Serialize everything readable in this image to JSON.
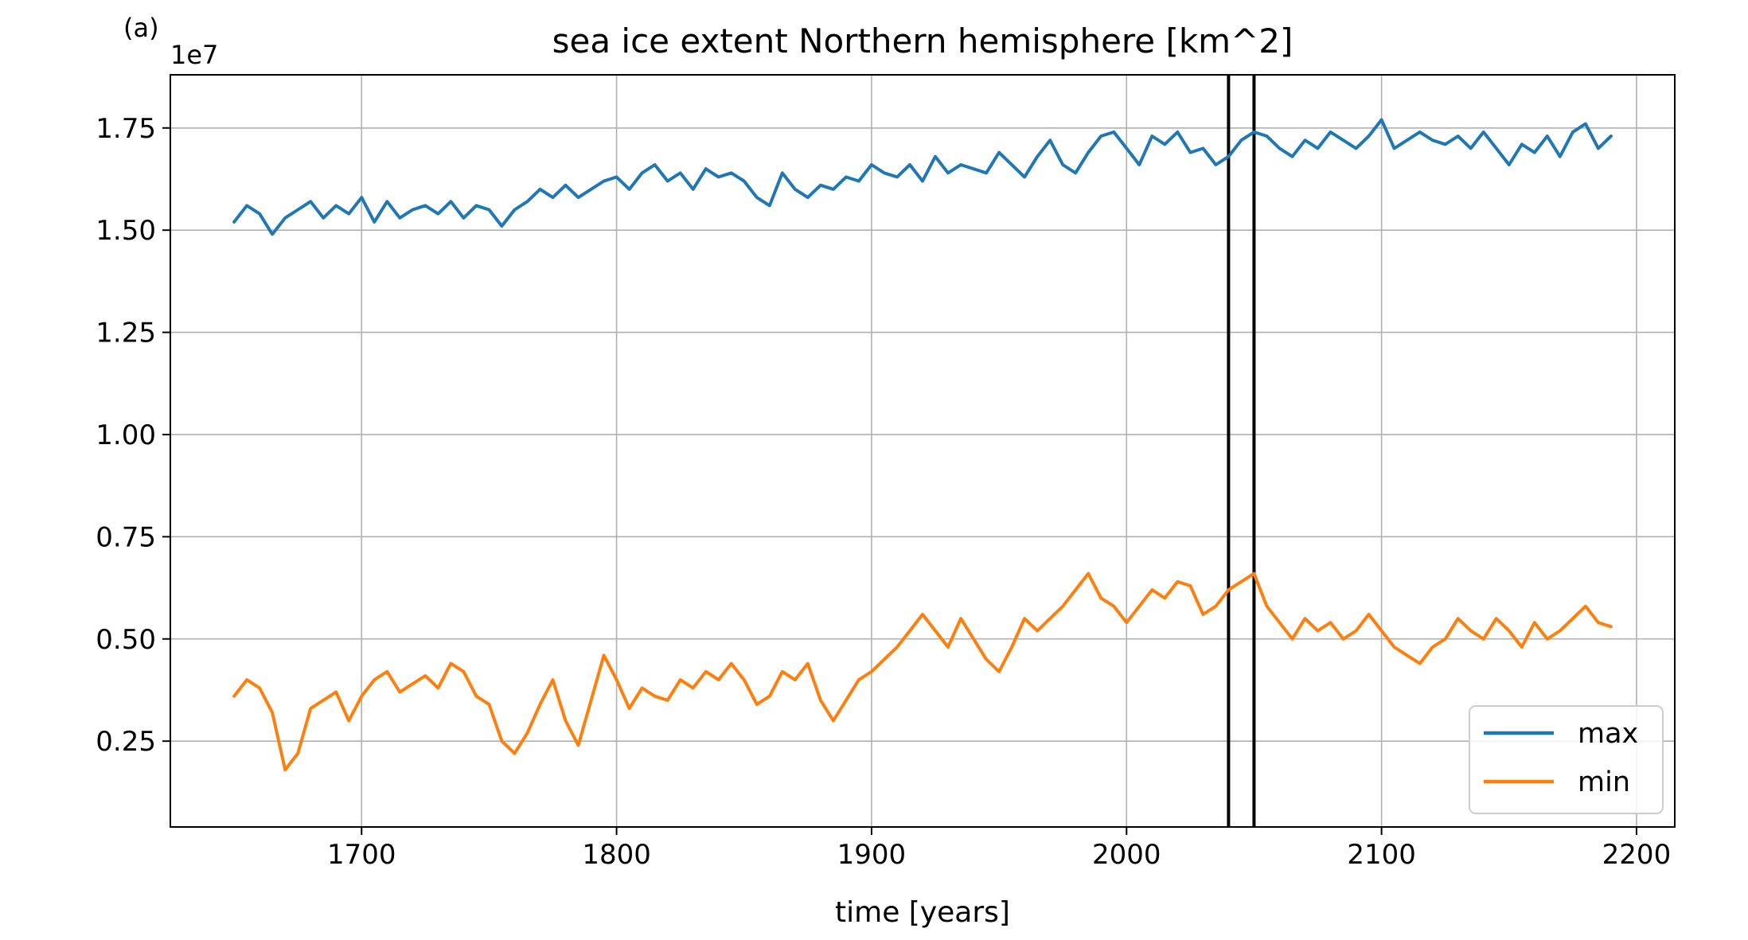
{
  "panel_label": "(a)",
  "chart_data": {
    "type": "line",
    "title": "sea ice extent Northern hemisphere [km^2]",
    "xlabel": "time [years]",
    "ylabel": "",
    "y_offset_label": "1e7",
    "y_scale": 10000000,
    "xlim": [
      1625,
      2215
    ],
    "ylim": [
      0.04,
      1.88
    ],
    "x_ticks": [
      1700,
      1800,
      1900,
      2000,
      2100,
      2200
    ],
    "y_ticks": [
      0.25,
      0.5,
      0.75,
      1.0,
      1.25,
      1.5,
      1.75
    ],
    "y_tick_labels": [
      "0.25",
      "0.50",
      "0.75",
      "1.00",
      "1.25",
      "1.50",
      "1.75"
    ],
    "grid": true,
    "legend_position": "lower-right",
    "vlines": [
      2040,
      2050
    ],
    "colors": {
      "max": "#1f77b4",
      "min": "#ff7f0e",
      "vline": "#000000",
      "grid": "#b0b0b0"
    },
    "series": [
      {
        "name": "max",
        "x": [
          1650,
          1655,
          1660,
          1665,
          1670,
          1675,
          1680,
          1685,
          1690,
          1695,
          1700,
          1705,
          1710,
          1715,
          1720,
          1725,
          1730,
          1735,
          1740,
          1745,
          1750,
          1755,
          1760,
          1765,
          1770,
          1775,
          1780,
          1785,
          1790,
          1795,
          1800,
          1805,
          1810,
          1815,
          1820,
          1825,
          1830,
          1835,
          1840,
          1845,
          1850,
          1855,
          1860,
          1865,
          1870,
          1875,
          1880,
          1885,
          1890,
          1895,
          1900,
          1905,
          1910,
          1915,
          1920,
          1925,
          1930,
          1935,
          1940,
          1945,
          1950,
          1955,
          1960,
          1965,
          1970,
          1975,
          1980,
          1985,
          1990,
          1995,
          2000,
          2005,
          2010,
          2015,
          2020,
          2025,
          2030,
          2035,
          2040,
          2045,
          2050,
          2055,
          2060,
          2065,
          2070,
          2075,
          2080,
          2085,
          2090,
          2095,
          2100,
          2105,
          2110,
          2115,
          2120,
          2125,
          2130,
          2135,
          2140,
          2145,
          2150,
          2155,
          2160,
          2165,
          2170,
          2175,
          2180,
          2185,
          2190
        ],
        "y": [
          1.52,
          1.56,
          1.54,
          1.49,
          1.53,
          1.55,
          1.57,
          1.53,
          1.56,
          1.54,
          1.58,
          1.52,
          1.57,
          1.53,
          1.55,
          1.56,
          1.54,
          1.57,
          1.53,
          1.56,
          1.55,
          1.51,
          1.55,
          1.57,
          1.6,
          1.58,
          1.61,
          1.58,
          1.6,
          1.62,
          1.63,
          1.6,
          1.64,
          1.66,
          1.62,
          1.64,
          1.6,
          1.65,
          1.63,
          1.64,
          1.62,
          1.58,
          1.56,
          1.64,
          1.6,
          1.58,
          1.61,
          1.6,
          1.63,
          1.62,
          1.66,
          1.64,
          1.63,
          1.66,
          1.62,
          1.68,
          1.64,
          1.66,
          1.65,
          1.64,
          1.69,
          1.66,
          1.63,
          1.68,
          1.72,
          1.66,
          1.64,
          1.69,
          1.73,
          1.74,
          1.7,
          1.66,
          1.73,
          1.71,
          1.74,
          1.69,
          1.7,
          1.66,
          1.68,
          1.72,
          1.74,
          1.73,
          1.7,
          1.68,
          1.72,
          1.7,
          1.74,
          1.72,
          1.7,
          1.73,
          1.77,
          1.7,
          1.72,
          1.74,
          1.72,
          1.71,
          1.73,
          1.7,
          1.74,
          1.7,
          1.66,
          1.71,
          1.69,
          1.73,
          1.68,
          1.74,
          1.76,
          1.7,
          1.73
        ]
      },
      {
        "name": "min",
        "x": [
          1650,
          1655,
          1660,
          1665,
          1670,
          1675,
          1680,
          1685,
          1690,
          1695,
          1700,
          1705,
          1710,
          1715,
          1720,
          1725,
          1730,
          1735,
          1740,
          1745,
          1750,
          1755,
          1760,
          1765,
          1770,
          1775,
          1780,
          1785,
          1790,
          1795,
          1800,
          1805,
          1810,
          1815,
          1820,
          1825,
          1830,
          1835,
          1840,
          1845,
          1850,
          1855,
          1860,
          1865,
          1870,
          1875,
          1880,
          1885,
          1890,
          1895,
          1900,
          1905,
          1910,
          1915,
          1920,
          1925,
          1930,
          1935,
          1940,
          1945,
          1950,
          1955,
          1960,
          1965,
          1970,
          1975,
          1980,
          1985,
          1990,
          1995,
          2000,
          2005,
          2010,
          2015,
          2020,
          2025,
          2030,
          2035,
          2040,
          2045,
          2050,
          2055,
          2060,
          2065,
          2070,
          2075,
          2080,
          2085,
          2090,
          2095,
          2100,
          2105,
          2110,
          2115,
          2120,
          2125,
          2130,
          2135,
          2140,
          2145,
          2150,
          2155,
          2160,
          2165,
          2170,
          2175,
          2180,
          2185,
          2190
        ],
        "y": [
          0.36,
          0.4,
          0.38,
          0.32,
          0.18,
          0.22,
          0.33,
          0.35,
          0.37,
          0.3,
          0.36,
          0.4,
          0.42,
          0.37,
          0.39,
          0.41,
          0.38,
          0.44,
          0.42,
          0.36,
          0.34,
          0.25,
          0.22,
          0.27,
          0.34,
          0.4,
          0.3,
          0.24,
          0.35,
          0.46,
          0.4,
          0.33,
          0.38,
          0.36,
          0.35,
          0.4,
          0.38,
          0.42,
          0.4,
          0.44,
          0.4,
          0.34,
          0.36,
          0.42,
          0.4,
          0.44,
          0.35,
          0.3,
          0.35,
          0.4,
          0.42,
          0.45,
          0.48,
          0.52,
          0.56,
          0.52,
          0.48,
          0.55,
          0.5,
          0.45,
          0.42,
          0.48,
          0.55,
          0.52,
          0.55,
          0.58,
          0.62,
          0.66,
          0.6,
          0.58,
          0.54,
          0.58,
          0.62,
          0.6,
          0.64,
          0.63,
          0.56,
          0.58,
          0.62,
          0.64,
          0.66,
          0.58,
          0.54,
          0.5,
          0.55,
          0.52,
          0.54,
          0.5,
          0.52,
          0.56,
          0.52,
          0.48,
          0.46,
          0.44,
          0.48,
          0.5,
          0.55,
          0.52,
          0.5,
          0.55,
          0.52,
          0.48,
          0.54,
          0.5,
          0.52,
          0.55,
          0.58,
          0.54,
          0.53
        ]
      }
    ]
  }
}
